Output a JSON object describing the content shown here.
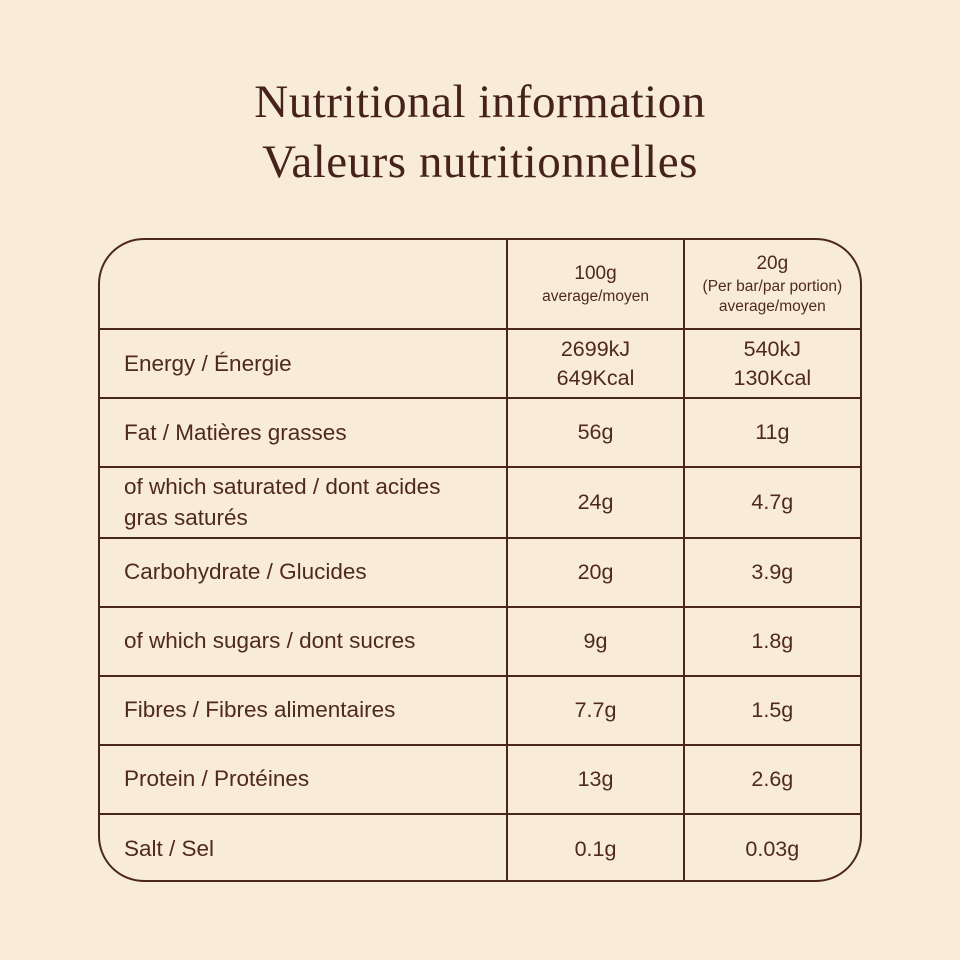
{
  "theme": {
    "background": "#f8ebd7",
    "text": "#4f2a1b",
    "border": "#4a2718",
    "title_color": "#46231a"
  },
  "title": {
    "line1": "Nutritional information",
    "line2": "Valeurs nutritionnelles"
  },
  "table": {
    "header": {
      "col1": "",
      "col2_main": "100g",
      "col2_sub": "average/moyen",
      "col3_main": "20g",
      "col3_sub1": "(Per bar/par portion)",
      "col3_sub2": "average/moyen"
    },
    "rows": [
      {
        "label": "Energy / Énergie",
        "per100g": "2699kJ\n649Kcal",
        "per20g": "540kJ\n130Kcal"
      },
      {
        "label": "Fat / Matières grasses",
        "per100g": "56g",
        "per20g": "11g"
      },
      {
        "label": "of which saturated / dont acides gras saturés",
        "per100g": "24g",
        "per20g": "4.7g"
      },
      {
        "label": "Carbohydrate / Glucides",
        "per100g": "20g",
        "per20g": "3.9g"
      },
      {
        "label": "of which sugars / dont sucres",
        "per100g": "9g",
        "per20g": "1.8g"
      },
      {
        "label": "Fibres / Fibres alimentaires",
        "per100g": "7.7g",
        "per20g": "1.5g"
      },
      {
        "label": "Protein / Protéines",
        "per100g": "13g",
        "per20g": "2.6g"
      },
      {
        "label": "Salt / Sel",
        "per100g": "0.1g",
        "per20g": "0.03g"
      }
    ]
  }
}
